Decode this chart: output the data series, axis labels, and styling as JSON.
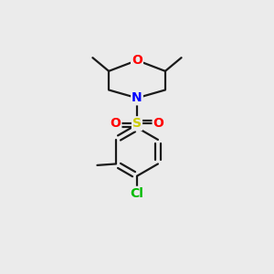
{
  "bg_color": "#ebebeb",
  "bond_color": "#1a1a1a",
  "bond_width": 1.6,
  "atom_colors": {
    "O": "#ff0000",
    "N": "#0000ff",
    "S": "#cccc00",
    "Cl": "#00bb00",
    "C": "#1a1a1a"
  },
  "font_size_atom": 10,
  "font_size_small": 9
}
